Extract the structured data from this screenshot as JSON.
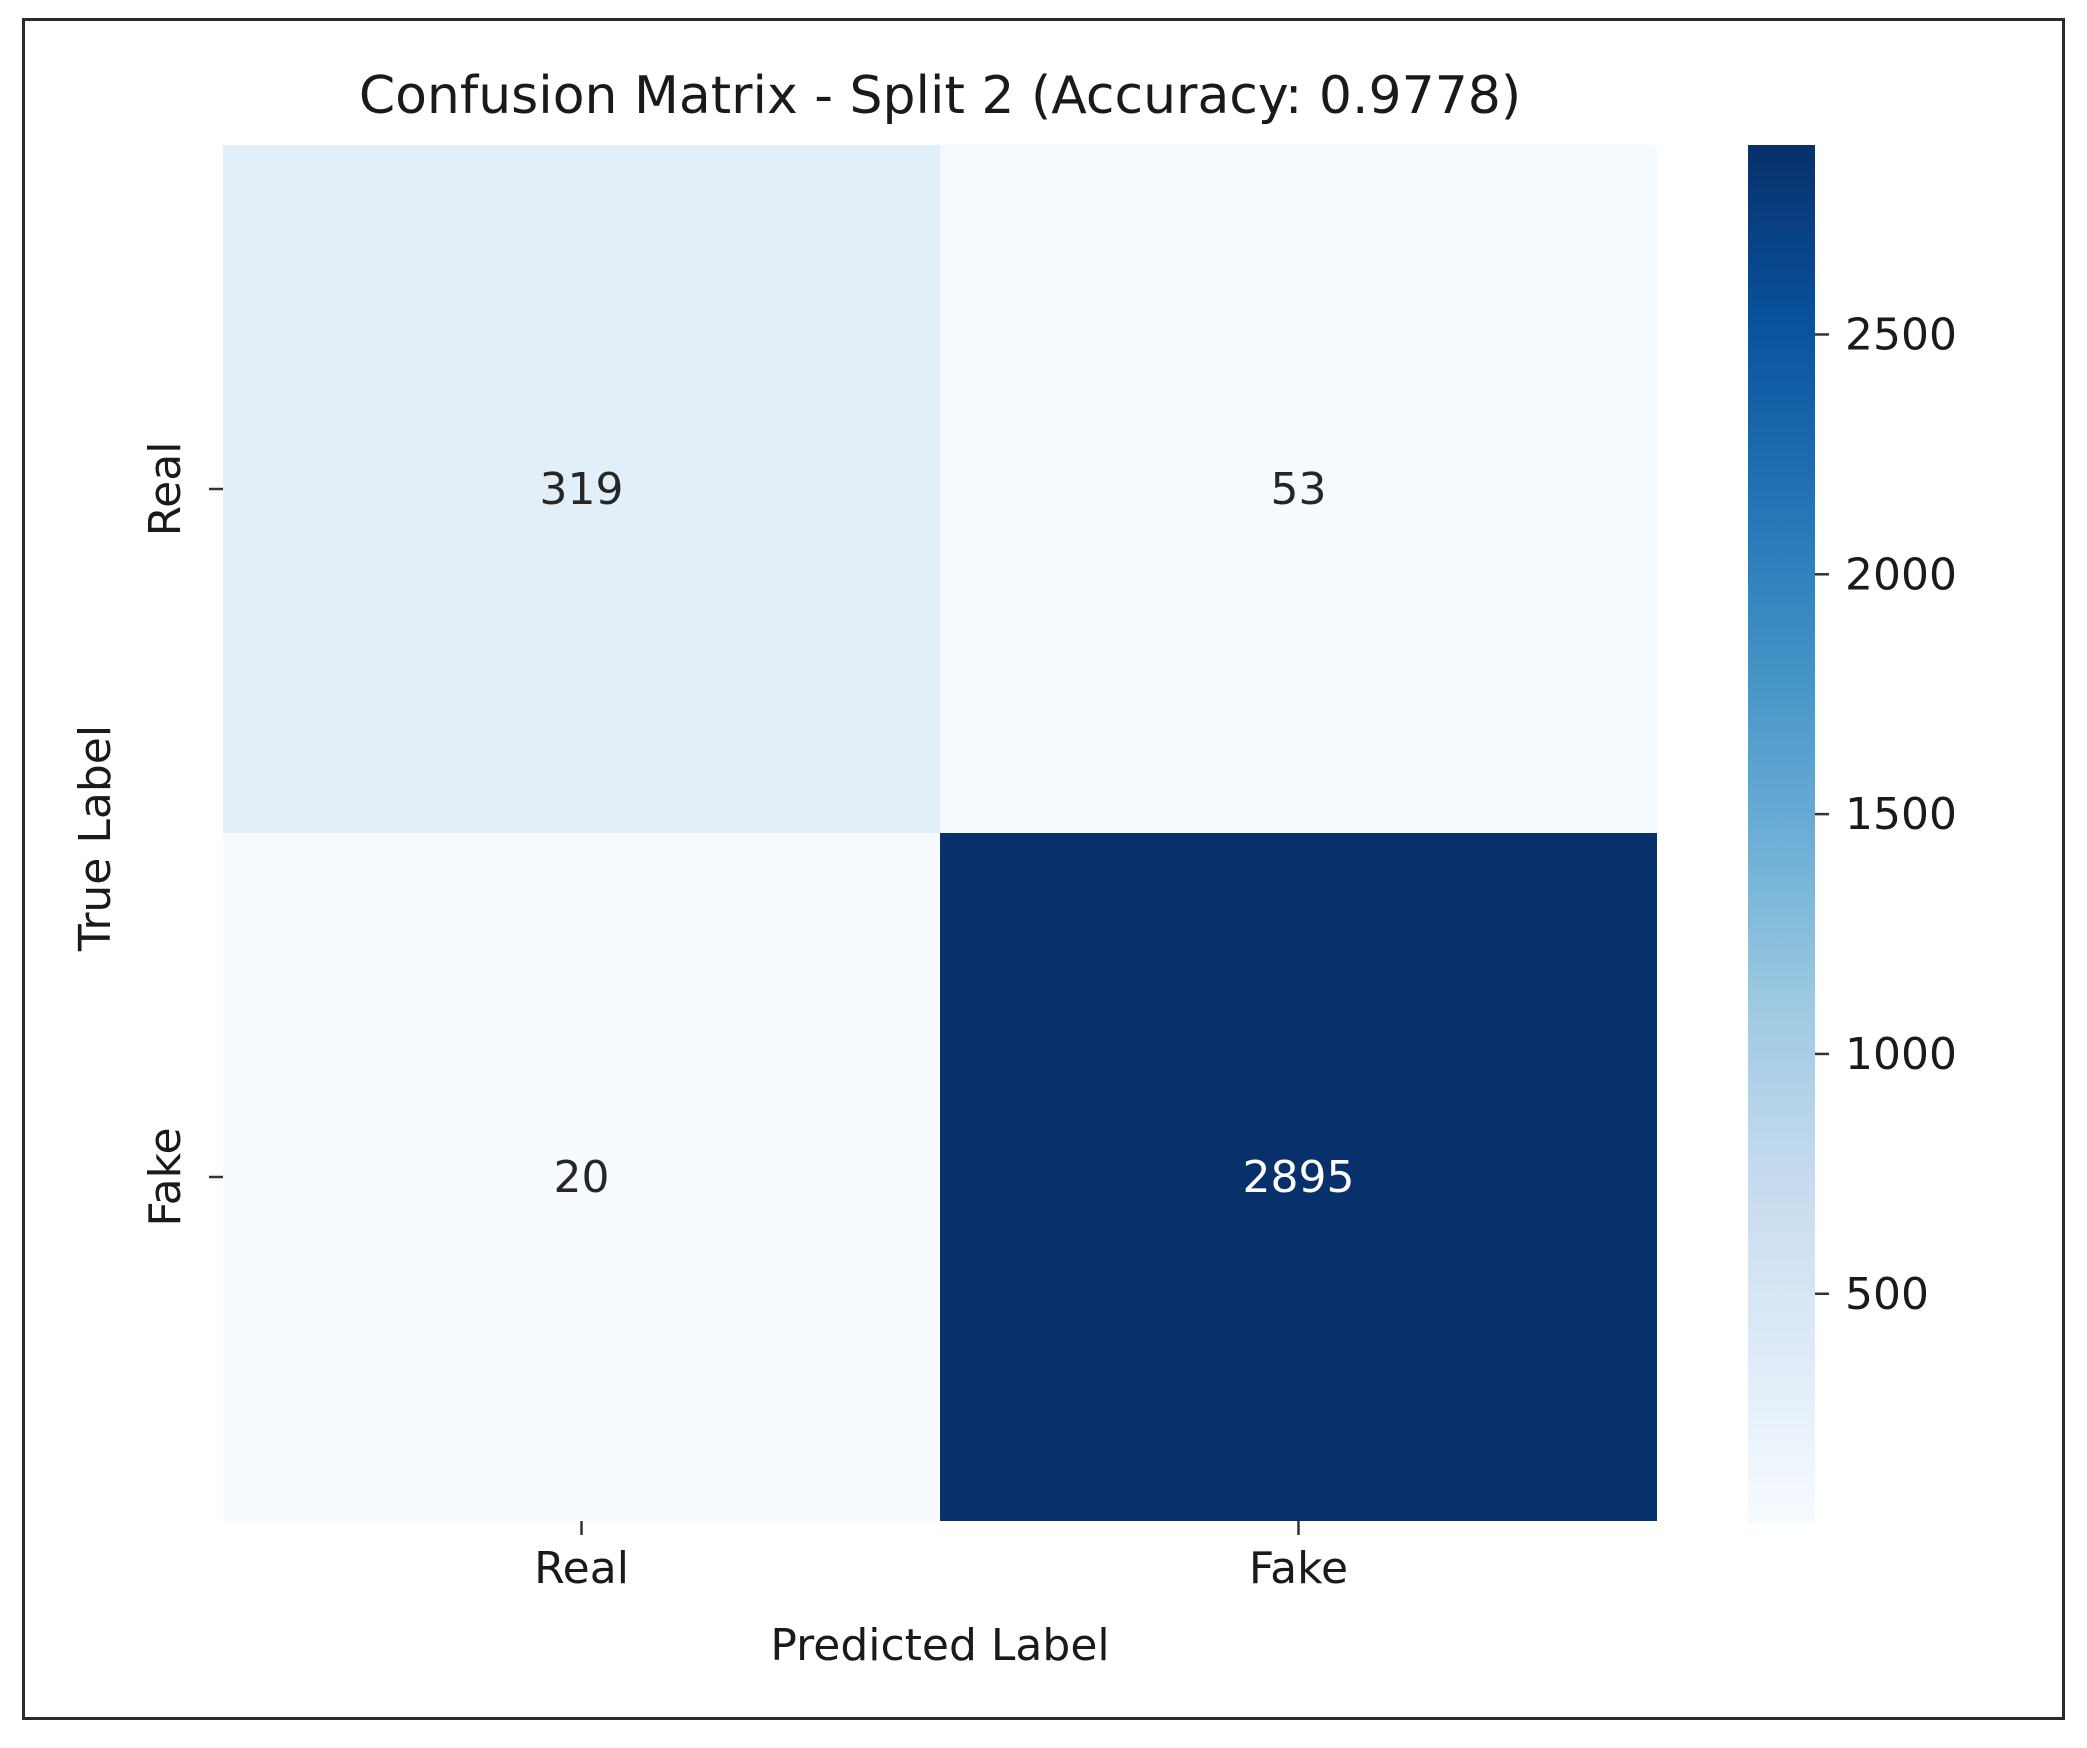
{
  "chart_data": {
    "type": "heatmap",
    "title": "Confusion Matrix - Split 2 (Accuracy: 0.9778)",
    "xlabel": "Predicted Label",
    "ylabel": "True Label",
    "x_categories": [
      "Real",
      "Fake"
    ],
    "y_categories": [
      "Real",
      "Fake"
    ],
    "values": [
      [
        319,
        53
      ],
      [
        20,
        2895
      ]
    ],
    "colormap": "Blues",
    "colorbar": {
      "min": 20,
      "max": 2895,
      "ticks": [
        500,
        1000,
        1500,
        2000,
        2500
      ]
    },
    "grid": false,
    "colors": {
      "low": "#f7fbff",
      "high": "#08306b",
      "text_dark": "#262626",
      "text_light": "#ffffff"
    }
  }
}
